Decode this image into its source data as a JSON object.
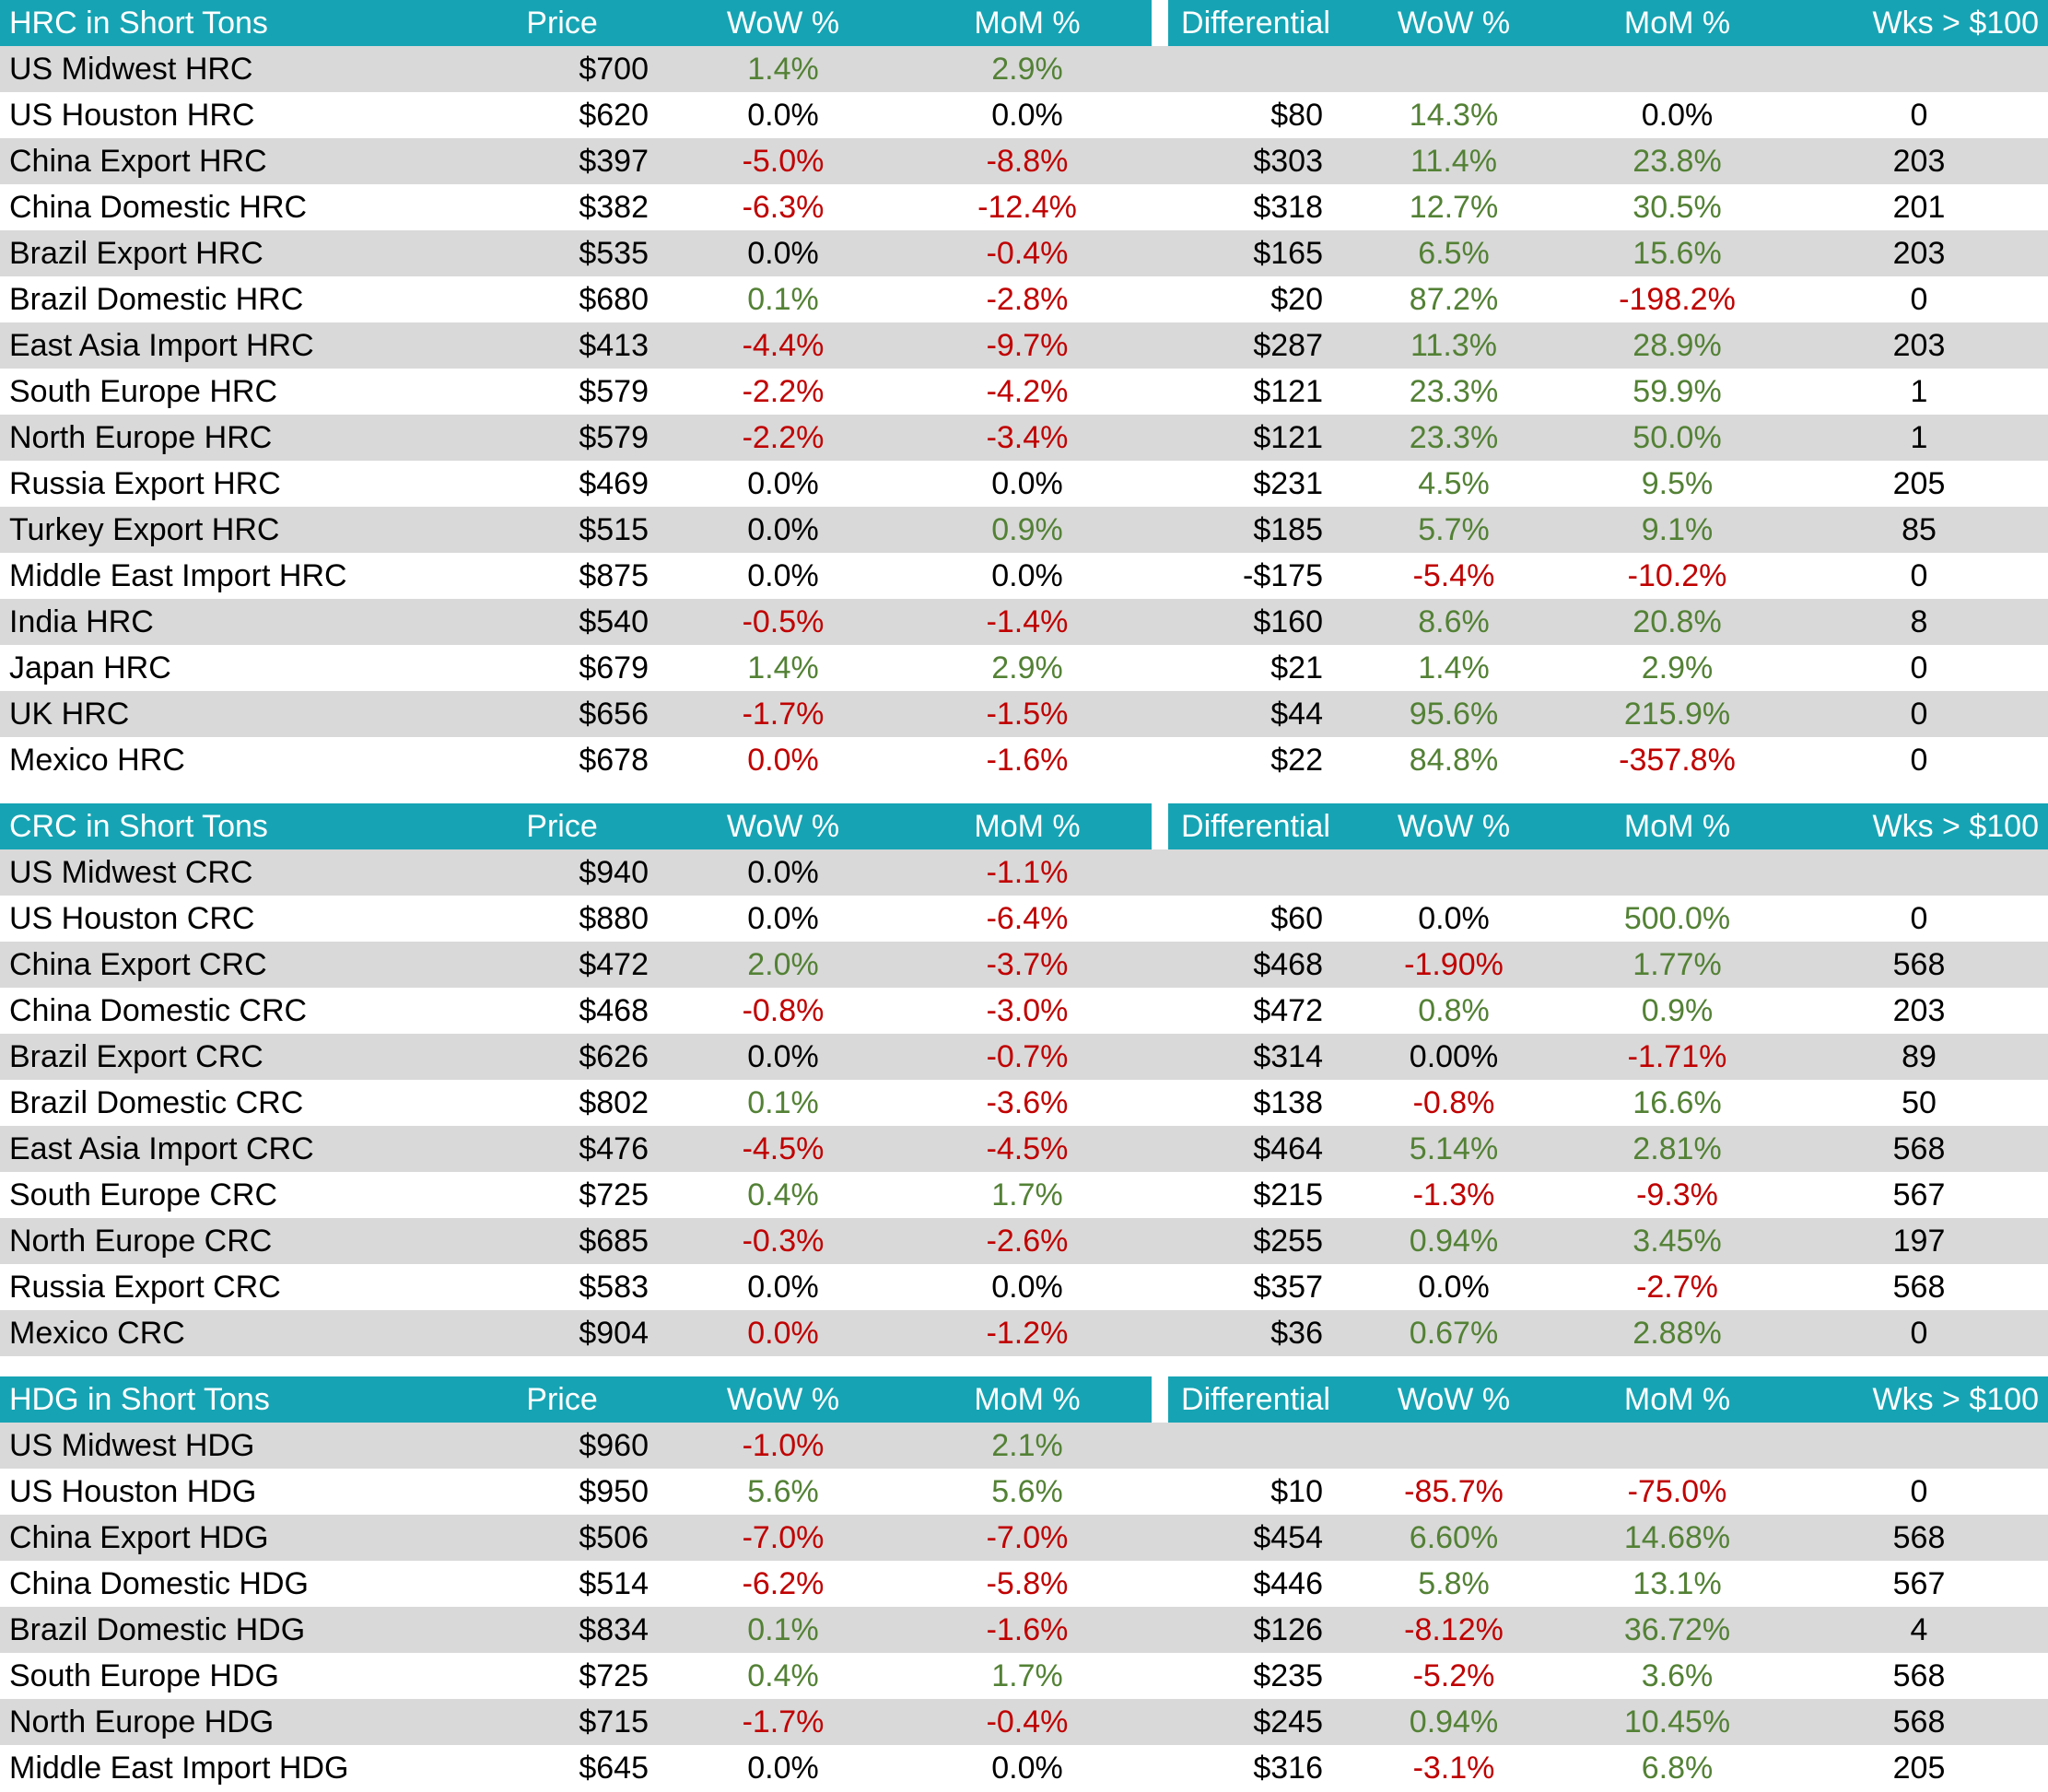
{
  "colors": {
    "header_bg": "#16A4B4",
    "header_text": "#FFFFFF",
    "stripe": "#D9D9D9",
    "row_white": "#FFFFFF",
    "positive_green": "#538135",
    "negative_red": "#C00000",
    "neutral_black": "#000000"
  },
  "chart_data": [
    {
      "type": "table",
      "title": "HRC in Short Tons",
      "columns": [
        "Price",
        "WoW %",
        "MoM %",
        "Differential",
        "WoW %",
        "MoM %",
        "Wks > $100"
      ],
      "rows": [
        {
          "name": "US Midwest HRC",
          "values": [
            "$700",
            "1.4%",
            "2.9%",
            "",
            "",
            "",
            ""
          ],
          "colors": [
            "k",
            "g",
            "g",
            "",
            "",
            "",
            ""
          ]
        },
        {
          "name": "US Houston HRC",
          "values": [
            "$620",
            "0.0%",
            "0.0%",
            "$80",
            "14.3%",
            "0.0%",
            "0"
          ],
          "colors": [
            "k",
            "k",
            "k",
            "k",
            "g",
            "k",
            "k"
          ]
        },
        {
          "name": "China Export HRC",
          "values": [
            "$397",
            "-5.0%",
            "-8.8%",
            "$303",
            "11.4%",
            "23.8%",
            "203"
          ],
          "colors": [
            "k",
            "r",
            "r",
            "k",
            "g",
            "g",
            "k"
          ]
        },
        {
          "name": "China Domestic HRC",
          "values": [
            "$382",
            "-6.3%",
            "-12.4%",
            "$318",
            "12.7%",
            "30.5%",
            "201"
          ],
          "colors": [
            "k",
            "r",
            "r",
            "k",
            "g",
            "g",
            "k"
          ]
        },
        {
          "name": "Brazil Export HRC",
          "values": [
            "$535",
            "0.0%",
            "-0.4%",
            "$165",
            "6.5%",
            "15.6%",
            "203"
          ],
          "colors": [
            "k",
            "k",
            "r",
            "k",
            "g",
            "g",
            "k"
          ]
        },
        {
          "name": "Brazil Domestic HRC",
          "values": [
            "$680",
            "0.1%",
            "-2.8%",
            "$20",
            "87.2%",
            "-198.2%",
            "0"
          ],
          "colors": [
            "k",
            "g",
            "r",
            "k",
            "g",
            "r",
            "k"
          ]
        },
        {
          "name": "East Asia Import HRC",
          "values": [
            "$413",
            "-4.4%",
            "-9.7%",
            "$287",
            "11.3%",
            "28.9%",
            "203"
          ],
          "colors": [
            "k",
            "r",
            "r",
            "k",
            "g",
            "g",
            "k"
          ]
        },
        {
          "name": "South Europe HRC",
          "values": [
            "$579",
            "-2.2%",
            "-4.2%",
            "$121",
            "23.3%",
            "59.9%",
            "1"
          ],
          "colors": [
            "k",
            "r",
            "r",
            "k",
            "g",
            "g",
            "k"
          ]
        },
        {
          "name": "North Europe HRC",
          "values": [
            "$579",
            "-2.2%",
            "-3.4%",
            "$121",
            "23.3%",
            "50.0%",
            "1"
          ],
          "colors": [
            "k",
            "r",
            "r",
            "k",
            "g",
            "g",
            "k"
          ]
        },
        {
          "name": "Russia Export HRC",
          "values": [
            "$469",
            "0.0%",
            "0.0%",
            "$231",
            "4.5%",
            "9.5%",
            "205"
          ],
          "colors": [
            "k",
            "k",
            "k",
            "k",
            "g",
            "g",
            "k"
          ]
        },
        {
          "name": "Turkey Export HRC",
          "values": [
            "$515",
            "0.0%",
            "0.9%",
            "$185",
            "5.7%",
            "9.1%",
            "85"
          ],
          "colors": [
            "k",
            "k",
            "g",
            "k",
            "g",
            "g",
            "k"
          ]
        },
        {
          "name": "Middle East Import HRC",
          "values": [
            "$875",
            "0.0%",
            "0.0%",
            "-$175",
            "-5.4%",
            "-10.2%",
            "0"
          ],
          "colors": [
            "k",
            "k",
            "k",
            "k",
            "r",
            "r",
            "k"
          ]
        },
        {
          "name": "India HRC",
          "values": [
            "$540",
            "-0.5%",
            "-1.4%",
            "$160",
            "8.6%",
            "20.8%",
            "8"
          ],
          "colors": [
            "k",
            "r",
            "r",
            "k",
            "g",
            "g",
            "k"
          ]
        },
        {
          "name": "Japan HRC",
          "values": [
            "$679",
            "1.4%",
            "2.9%",
            "$21",
            "1.4%",
            "2.9%",
            "0"
          ],
          "colors": [
            "k",
            "g",
            "g",
            "k",
            "g",
            "g",
            "k"
          ]
        },
        {
          "name": "UK HRC",
          "values": [
            "$656",
            "-1.7%",
            "-1.5%",
            "$44",
            "95.6%",
            "215.9%",
            "0"
          ],
          "colors": [
            "k",
            "r",
            "r",
            "k",
            "g",
            "g",
            "k"
          ]
        },
        {
          "name": "Mexico HRC",
          "values": [
            "$678",
            "0.0%",
            "-1.6%",
            "$22",
            "84.8%",
            "-357.8%",
            "0"
          ],
          "colors": [
            "k",
            "r",
            "r",
            "k",
            "g",
            "r",
            "k"
          ]
        }
      ]
    },
    {
      "type": "table",
      "title": "CRC in Short Tons",
      "columns": [
        "Price",
        "WoW %",
        "MoM %",
        "Differential",
        "WoW %",
        "MoM %",
        "Wks > $100"
      ],
      "rows": [
        {
          "name": "US Midwest CRC",
          "values": [
            "$940",
            "0.0%",
            "-1.1%",
            "",
            "",
            "",
            ""
          ],
          "colors": [
            "k",
            "k",
            "r",
            "",
            "",
            "",
            ""
          ]
        },
        {
          "name": "US Houston CRC",
          "values": [
            "$880",
            "0.0%",
            "-6.4%",
            "$60",
            "0.0%",
            "500.0%",
            "0"
          ],
          "colors": [
            "k",
            "k",
            "r",
            "k",
            "k",
            "g",
            "k"
          ]
        },
        {
          "name": "China Export CRC",
          "values": [
            "$472",
            "2.0%",
            "-3.7%",
            "$468",
            "-1.90%",
            "1.77%",
            "568"
          ],
          "colors": [
            "k",
            "g",
            "r",
            "k",
            "r",
            "g",
            "k"
          ]
        },
        {
          "name": "China Domestic CRC",
          "values": [
            "$468",
            "-0.8%",
            "-3.0%",
            "$472",
            "0.8%",
            "0.9%",
            "203"
          ],
          "colors": [
            "k",
            "r",
            "r",
            "k",
            "g",
            "g",
            "k"
          ]
        },
        {
          "name": "Brazil Export CRC",
          "values": [
            "$626",
            "0.0%",
            "-0.7%",
            "$314",
            "0.00%",
            "-1.71%",
            "89"
          ],
          "colors": [
            "k",
            "k",
            "r",
            "k",
            "k",
            "r",
            "k"
          ]
        },
        {
          "name": "Brazil Domestic CRC",
          "values": [
            "$802",
            "0.1%",
            "-3.6%",
            "$138",
            "-0.8%",
            "16.6%",
            "50"
          ],
          "colors": [
            "k",
            "g",
            "r",
            "k",
            "r",
            "g",
            "k"
          ]
        },
        {
          "name": "East Asia Import CRC",
          "values": [
            "$476",
            "-4.5%",
            "-4.5%",
            "$464",
            "5.14%",
            "2.81%",
            "568"
          ],
          "colors": [
            "k",
            "r",
            "r",
            "k",
            "g",
            "g",
            "k"
          ]
        },
        {
          "name": "South Europe CRC",
          "values": [
            "$725",
            "0.4%",
            "1.7%",
            "$215",
            "-1.3%",
            "-9.3%",
            "567"
          ],
          "colors": [
            "k",
            "g",
            "g",
            "k",
            "r",
            "r",
            "k"
          ]
        },
        {
          "name": "North Europe CRC",
          "values": [
            "$685",
            "-0.3%",
            "-2.6%",
            "$255",
            "0.94%",
            "3.45%",
            "197"
          ],
          "colors": [
            "k",
            "r",
            "r",
            "k",
            "g",
            "g",
            "k"
          ]
        },
        {
          "name": "Russia Export CRC",
          "values": [
            "$583",
            "0.0%",
            "0.0%",
            "$357",
            "0.0%",
            "-2.7%",
            "568"
          ],
          "colors": [
            "k",
            "k",
            "k",
            "k",
            "k",
            "r",
            "k"
          ]
        },
        {
          "name": "Mexico CRC",
          "values": [
            "$904",
            "0.0%",
            "-1.2%",
            "$36",
            "0.67%",
            "2.88%",
            "0"
          ],
          "colors": [
            "k",
            "r",
            "r",
            "k",
            "g",
            "g",
            "k"
          ]
        }
      ]
    },
    {
      "type": "table",
      "title": "HDG in Short Tons",
      "columns": [
        "Price",
        "WoW %",
        "MoM %",
        "Differential",
        "WoW %",
        "MoM %",
        "Wks > $100"
      ],
      "rows": [
        {
          "name": "US Midwest HDG",
          "values": [
            "$960",
            "-1.0%",
            "2.1%",
            "",
            "",
            "",
            ""
          ],
          "colors": [
            "k",
            "r",
            "g",
            "",
            "",
            "",
            ""
          ]
        },
        {
          "name": "US Houston HDG",
          "values": [
            "$950",
            "5.6%",
            "5.6%",
            "$10",
            "-85.7%",
            "-75.0%",
            "0"
          ],
          "colors": [
            "k",
            "g",
            "g",
            "k",
            "r",
            "r",
            "k"
          ]
        },
        {
          "name": "China Export HDG",
          "values": [
            "$506",
            "-7.0%",
            "-7.0%",
            "$454",
            "6.60%",
            "14.68%",
            "568"
          ],
          "colors": [
            "k",
            "r",
            "r",
            "k",
            "g",
            "g",
            "k"
          ]
        },
        {
          "name": "China Domestic HDG",
          "values": [
            "$514",
            "-6.2%",
            "-5.8%",
            "$446",
            "5.8%",
            "13.1%",
            "567"
          ],
          "colors": [
            "k",
            "r",
            "r",
            "k",
            "g",
            "g",
            "k"
          ]
        },
        {
          "name": "Brazil Domestic HDG",
          "values": [
            "$834",
            "0.1%",
            "-1.6%",
            "$126",
            "-8.12%",
            "36.72%",
            "4"
          ],
          "colors": [
            "k",
            "g",
            "r",
            "k",
            "r",
            "g",
            "k"
          ]
        },
        {
          "name": "South Europe HDG",
          "values": [
            "$725",
            "0.4%",
            "1.7%",
            "$235",
            "-5.2%",
            "3.6%",
            "568"
          ],
          "colors": [
            "k",
            "g",
            "g",
            "k",
            "r",
            "g",
            "k"
          ]
        },
        {
          "name": "North Europe HDG",
          "values": [
            "$715",
            "-1.7%",
            "-0.4%",
            "$245",
            "0.94%",
            "10.45%",
            "568"
          ],
          "colors": [
            "k",
            "r",
            "r",
            "k",
            "g",
            "g",
            "k"
          ]
        },
        {
          "name": "Middle East Import HDG",
          "values": [
            "$645",
            "0.0%",
            "0.0%",
            "$316",
            "-3.1%",
            "6.8%",
            "205"
          ],
          "colors": [
            "k",
            "k",
            "k",
            "k",
            "r",
            "g",
            "k"
          ]
        }
      ]
    }
  ]
}
